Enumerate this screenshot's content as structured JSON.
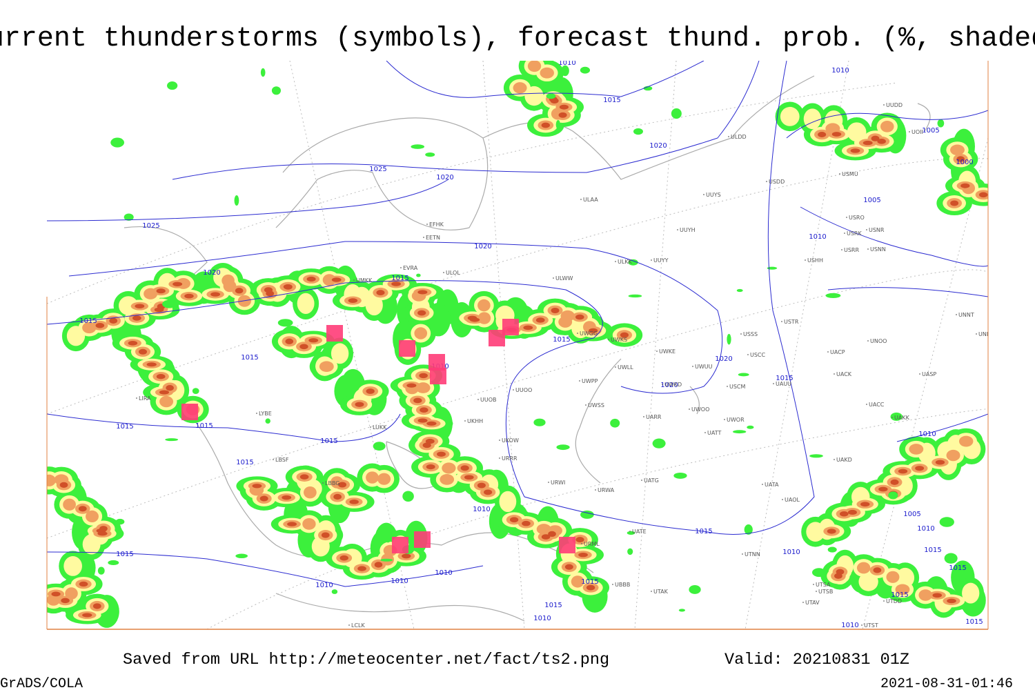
{
  "header": {
    "title": "Current thunderstorms (symbols), forecast thund. prob. (%, shaded)"
  },
  "map": {
    "isobar_labels": [
      1010,
      1015,
      1005,
      1020,
      1025,
      1020,
      1000,
      1005,
      1025,
      1010,
      1020,
      1020,
      1015,
      1015,
      1015,
      1015,
      1010,
      1020,
      1020,
      1015,
      1015,
      1015,
      1015,
      1015,
      1010,
      1010,
      1005,
      1015,
      1010,
      1015,
      1010,
      1015,
      1015,
      1010,
      1010,
      1010,
      1015,
      1015,
      1015,
      1010,
      1010,
      1015,
      1010
    ],
    "stations": [
      "ULDD",
      "USDD",
      "USMU",
      "ULAA",
      "ULOL",
      "UUYS",
      "UUYH",
      "ULKK",
      "UUYY",
      "ULWW",
      "EFHK",
      "EETN",
      "EVRA",
      "UMKK",
      "USRO",
      "USRK",
      "USNR",
      "USRR",
      "USNN",
      "USHH",
      "UUDD",
      "UOII",
      "USTR",
      "USSS",
      "USCC",
      "UNOO",
      "UNNT",
      "UNBB",
      "UACP",
      "UACK",
      "UASP",
      "UACC",
      "UAKK",
      "UWKE",
      "UWLL",
      "UWUU",
      "UWKD",
      "USCM",
      "UAUU",
      "UWPP",
      "UWSS",
      "UWOO",
      "UWOR",
      "UATT",
      "UARR",
      "UUOO",
      "UUOB",
      "UKHH",
      "UKOW",
      "URRR",
      "URWI",
      "UATG",
      "URWA",
      "UATE",
      "UTNN",
      "UATA",
      "UAOL",
      "UAKD",
      "UWKS",
      "UWGG",
      "LUKK",
      "LBSF",
      "LBBG",
      "LYBE",
      "LIRA",
      "URML",
      "UBBB",
      "UTAK",
      "UTSA",
      "UTSB",
      "UTAV",
      "UTST",
      "UTDD",
      "LCLK"
    ]
  },
  "footer": {
    "source": "Saved from URL http://meteocenter.net/fact/ts2.png",
    "valid": "Valid: 20210831 01Z",
    "software": "GrADS/COLA",
    "timestamp": "2021-08-31-01:46"
  }
}
